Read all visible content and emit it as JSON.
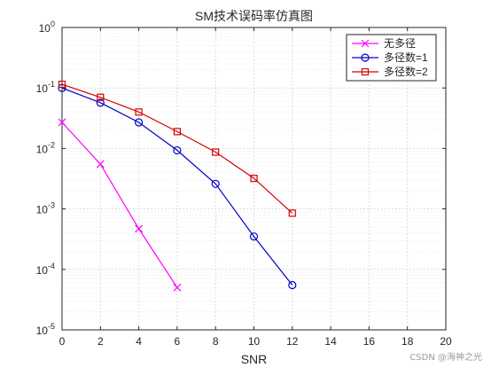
{
  "chart_data": {
    "type": "line",
    "title": "SM技术误码率仿真图",
    "xlabel": "SNR",
    "ylabel": "",
    "xlim": [
      0,
      20
    ],
    "ylim": [
      1e-05,
      1
    ],
    "yscale": "log",
    "grid": true,
    "x_ticks": [
      "0",
      "2",
      "4",
      "6",
      "8",
      "10",
      "12",
      "14",
      "16",
      "18",
      "20"
    ],
    "y_ticks": [
      {
        "base": "10",
        "exp": "0"
      },
      {
        "base": "10",
        "exp": "-1"
      },
      {
        "base": "10",
        "exp": "-2"
      },
      {
        "base": "10",
        "exp": "-3"
      },
      {
        "base": "10",
        "exp": "-4"
      },
      {
        "base": "10",
        "exp": "-5"
      }
    ],
    "legend_position": "top-right",
    "series": [
      {
        "name": "无多径",
        "color": "#ff00ff",
        "marker": "x",
        "x": [
          0,
          2,
          4,
          6
        ],
        "y": [
          0.027,
          0.0055,
          0.00047,
          5e-05
        ]
      },
      {
        "name": "多径数=1",
        "color": "#0000c8",
        "marker": "circle",
        "x": [
          0,
          2,
          4,
          6,
          8,
          10,
          12
        ],
        "y": [
          0.1,
          0.057,
          0.027,
          0.0093,
          0.0026,
          0.00035,
          5.5e-05
        ]
      },
      {
        "name": "多径数=2",
        "color": "#d40000",
        "marker": "square",
        "x": [
          0,
          2,
          4,
          6,
          8,
          10,
          12
        ],
        "y": [
          0.115,
          0.07,
          0.04,
          0.019,
          0.0087,
          0.0032,
          0.00085
        ]
      }
    ]
  },
  "watermark": "CSDN @海神之光"
}
